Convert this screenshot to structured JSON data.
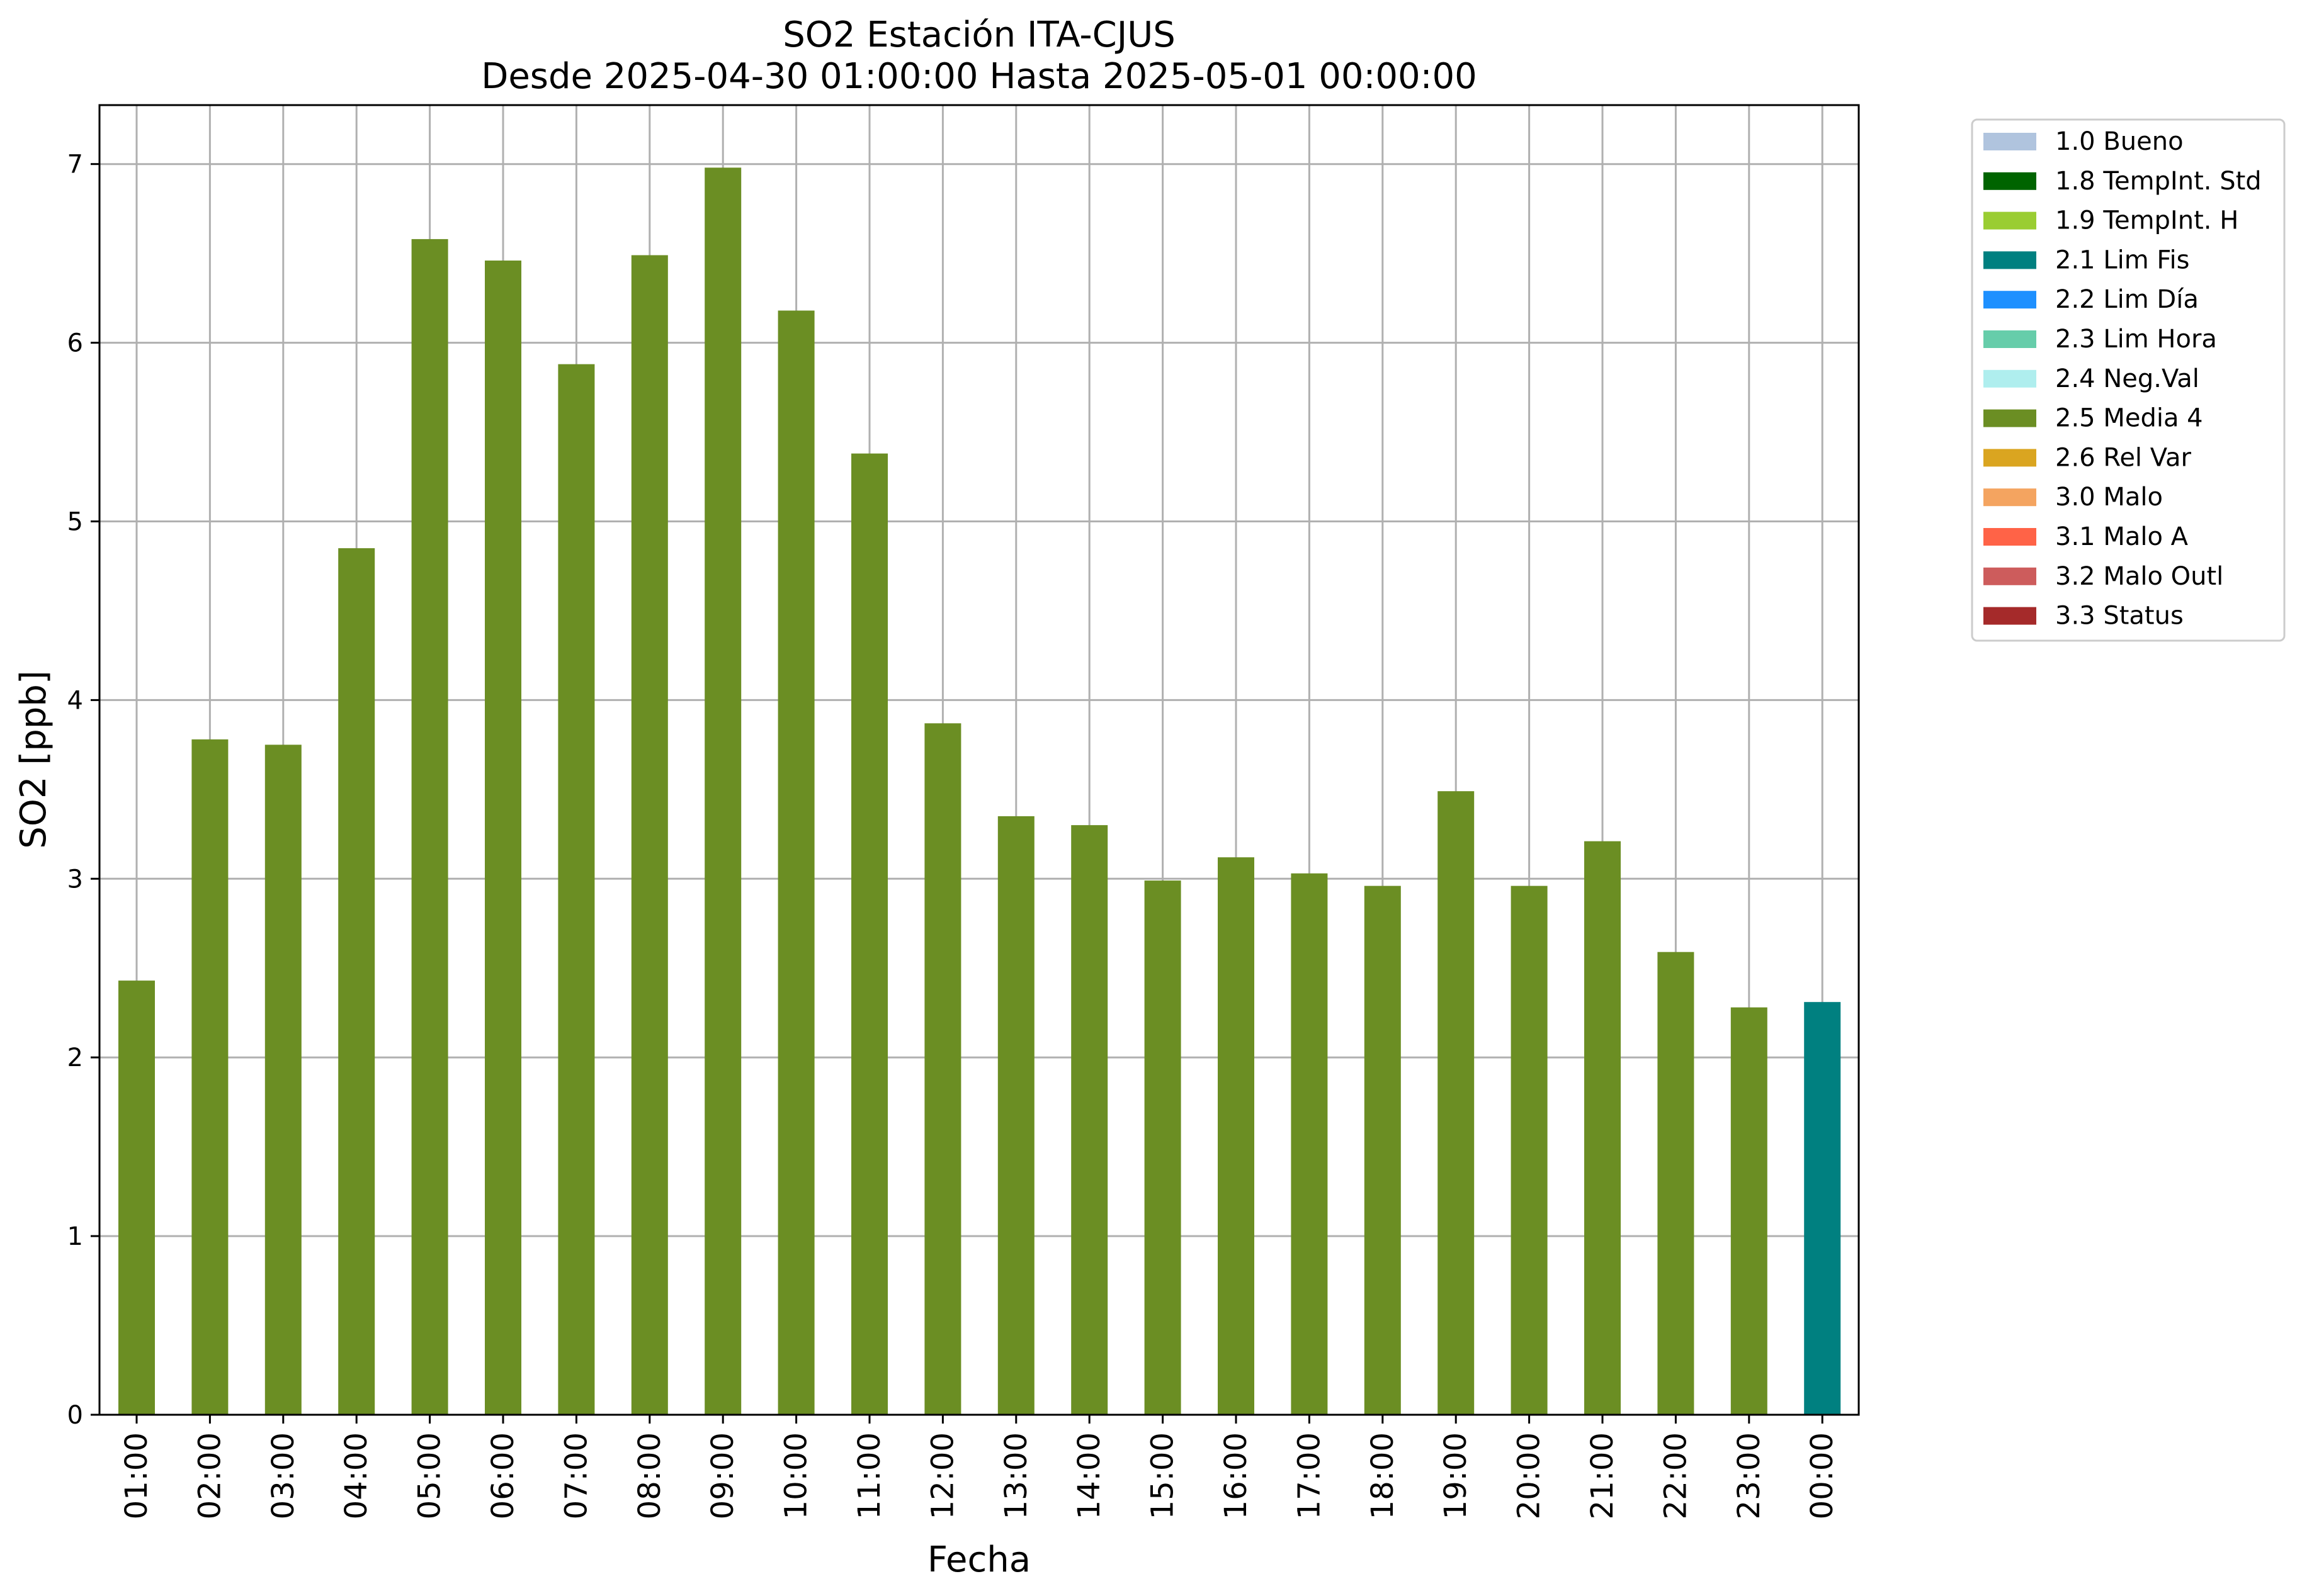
{
  "chart_data": {
    "type": "bar",
    "title": "SO2 Estación ITA-CJUS",
    "subtitle": "Desde 2025-04-30 01:00:00 Hasta 2025-05-01 00:00:00",
    "xlabel": "Fecha",
    "ylabel": "SO2 [ppb]",
    "ylim": [
      0,
      7.33
    ],
    "yticks": [
      "0",
      "1",
      "2",
      "3",
      "4",
      "5",
      "6",
      "7"
    ],
    "grid": true,
    "legend_position": "outside-right-top",
    "categories": [
      "01:00",
      "02:00",
      "03:00",
      "04:00",
      "05:00",
      "06:00",
      "07:00",
      "08:00",
      "09:00",
      "10:00",
      "11:00",
      "12:00",
      "13:00",
      "14:00",
      "15:00",
      "16:00",
      "17:00",
      "18:00",
      "19:00",
      "20:00",
      "21:00",
      "22:00",
      "23:00",
      "00:00"
    ],
    "values": [
      2.43,
      3.78,
      3.75,
      4.85,
      6.58,
      6.46,
      5.88,
      6.49,
      6.98,
      6.18,
      5.38,
      3.87,
      3.35,
      3.3,
      2.99,
      3.12,
      3.03,
      2.96,
      3.49,
      2.96,
      3.21,
      2.59,
      2.28,
      2.31
    ],
    "flags": [
      "2.5 Media 4",
      "2.5 Media 4",
      "2.5 Media 4",
      "2.5 Media 4",
      "2.5 Media 4",
      "2.5 Media 4",
      "2.5 Media 4",
      "2.5 Media 4",
      "2.5 Media 4",
      "2.5 Media 4",
      "2.5 Media 4",
      "2.5 Media 4",
      "2.5 Media 4",
      "2.5 Media 4",
      "2.5 Media 4",
      "2.5 Media 4",
      "2.5 Media 4",
      "2.5 Media 4",
      "2.5 Media 4",
      "2.5 Media 4",
      "2.5 Media 4",
      "2.5 Media 4",
      "2.5 Media 4",
      "2.1 Lim Fis"
    ],
    "legend": [
      {
        "label": "1.0 Bueno",
        "color": "#b0c4de"
      },
      {
        "label": "1.8 TempInt. Std",
        "color": "#006400"
      },
      {
        "label": "1.9 TempInt. H",
        "color": "#9acd32"
      },
      {
        "label": "2.1 Lim Fis",
        "color": "#008080"
      },
      {
        "label": "2.2 Lim Día",
        "color": "#1e90ff"
      },
      {
        "label": "2.3 Lim Hora",
        "color": "#66cdaa"
      },
      {
        "label": "2.4 Neg.Val",
        "color": "#afeeee"
      },
      {
        "label": "2.5 Media 4",
        "color": "#6b8e23"
      },
      {
        "label": "2.6 Rel Var",
        "color": "#daa520"
      },
      {
        "label": "3.0 Malo",
        "color": "#f4a460"
      },
      {
        "label": "3.1 Malo A",
        "color": "#ff6347"
      },
      {
        "label": "3.2 Malo Outl",
        "color": "#cd5c5c"
      },
      {
        "label": "3.3 Status",
        "color": "#a52a2a"
      }
    ]
  }
}
